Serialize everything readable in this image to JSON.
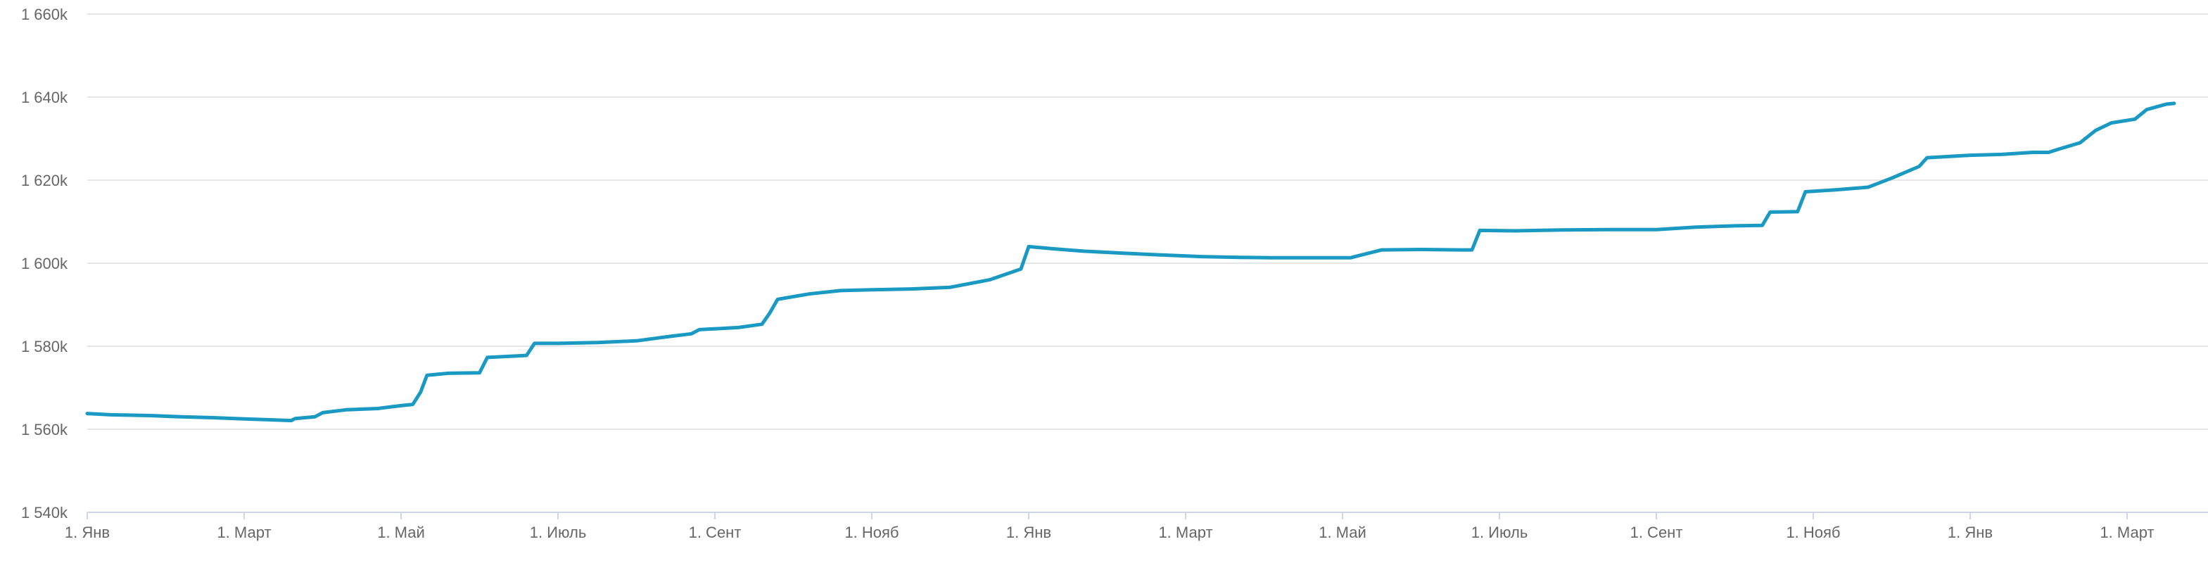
{
  "chart_data": {
    "type": "line",
    "title": "",
    "xlabel": "",
    "ylabel": "",
    "ylim": [
      1540000,
      1660000
    ],
    "yticks": [
      {
        "value": 1660000,
        "label": "1 660k"
      },
      {
        "value": 1640000,
        "label": "1 640k"
      },
      {
        "value": 1620000,
        "label": "1 620k"
      },
      {
        "value": 1600000,
        "label": "1 600k"
      },
      {
        "value": 1580000,
        "label": "1 580k"
      },
      {
        "value": 1560000,
        "label": "1 560k"
      },
      {
        "value": 1540000,
        "label": "1 540k"
      }
    ],
    "xlim": [
      0,
      26.6
    ],
    "xticks": [
      {
        "value": 0,
        "label": "1. Янв"
      },
      {
        "value": 2,
        "label": "1. Март"
      },
      {
        "value": 4,
        "label": "1. Май"
      },
      {
        "value": 6,
        "label": "1. Июль"
      },
      {
        "value": 8,
        "label": "1. Сент"
      },
      {
        "value": 10,
        "label": "1. Нояб"
      },
      {
        "value": 12,
        "label": "1. Янв"
      },
      {
        "value": 14,
        "label": "1. Март"
      },
      {
        "value": 16,
        "label": "1. Май"
      },
      {
        "value": 18,
        "label": "1. Июль"
      },
      {
        "value": 20,
        "label": "1. Сент"
      },
      {
        "value": 22,
        "label": "1. Нояб"
      },
      {
        "value": 24,
        "label": "1. Янв"
      },
      {
        "value": 26,
        "label": "1. Март"
      }
    ],
    "grid": true,
    "legend": "none",
    "series": [
      {
        "color": "#1a9ac2",
        "points": [
          [
            0.0,
            1563800
          ],
          [
            0.3,
            1563500
          ],
          [
            0.8,
            1563300
          ],
          [
            1.2,
            1563000
          ],
          [
            1.6,
            1562800
          ],
          [
            2.0,
            1562500
          ],
          [
            2.3,
            1562300
          ],
          [
            2.6,
            1562100
          ],
          [
            2.65,
            1562600
          ],
          [
            2.9,
            1563000
          ],
          [
            3.0,
            1564000
          ],
          [
            3.3,
            1564700
          ],
          [
            3.7,
            1565000
          ],
          [
            4.0,
            1565700
          ],
          [
            4.15,
            1566000
          ],
          [
            4.25,
            1569000
          ],
          [
            4.33,
            1573000
          ],
          [
            4.6,
            1573500
          ],
          [
            5.0,
            1573600
          ],
          [
            5.1,
            1577300
          ],
          [
            5.5,
            1577700
          ],
          [
            5.6,
            1577800
          ],
          [
            5.7,
            1580700
          ],
          [
            6.0,
            1580700
          ],
          [
            6.5,
            1580900
          ],
          [
            7.0,
            1581300
          ],
          [
            7.4,
            1582300
          ],
          [
            7.7,
            1583000
          ],
          [
            7.8,
            1584000
          ],
          [
            8.3,
            1584500
          ],
          [
            8.6,
            1585300
          ],
          [
            8.7,
            1588000
          ],
          [
            8.8,
            1591300
          ],
          [
            9.2,
            1592600
          ],
          [
            9.6,
            1593400
          ],
          [
            10.0,
            1593600
          ],
          [
            10.5,
            1593800
          ],
          [
            11.0,
            1594200
          ],
          [
            11.5,
            1596000
          ],
          [
            11.9,
            1598600
          ],
          [
            12.0,
            1604000
          ],
          [
            12.3,
            1603500
          ],
          [
            12.7,
            1602900
          ],
          [
            13.2,
            1602400
          ],
          [
            13.8,
            1601900
          ],
          [
            14.2,
            1601600
          ],
          [
            14.7,
            1601400
          ],
          [
            15.1,
            1601300
          ],
          [
            15.6,
            1601300
          ],
          [
            16.1,
            1601300
          ],
          [
            16.2,
            1601800
          ],
          [
            16.5,
            1603200
          ],
          [
            17.0,
            1603300
          ],
          [
            17.5,
            1603200
          ],
          [
            17.65,
            1603200
          ],
          [
            17.75,
            1607900
          ],
          [
            18.2,
            1607800
          ],
          [
            18.8,
            1608000
          ],
          [
            19.4,
            1608100
          ],
          [
            20.0,
            1608100
          ],
          [
            20.5,
            1608700
          ],
          [
            21.0,
            1609000
          ],
          [
            21.35,
            1609100
          ],
          [
            21.45,
            1612300
          ],
          [
            21.8,
            1612400
          ],
          [
            21.9,
            1617200
          ],
          [
            22.3,
            1617700
          ],
          [
            22.7,
            1618300
          ],
          [
            23.0,
            1620500
          ],
          [
            23.35,
            1623300
          ],
          [
            23.45,
            1625400
          ],
          [
            24.0,
            1626000
          ],
          [
            24.4,
            1626200
          ],
          [
            24.8,
            1626700
          ],
          [
            25.0,
            1626700
          ],
          [
            25.1,
            1627300
          ],
          [
            25.4,
            1629000
          ],
          [
            25.6,
            1632000
          ],
          [
            25.8,
            1633800
          ],
          [
            26.1,
            1634700
          ],
          [
            26.25,
            1637000
          ],
          [
            26.5,
            1638300
          ],
          [
            26.6,
            1638500
          ]
        ]
      }
    ]
  }
}
